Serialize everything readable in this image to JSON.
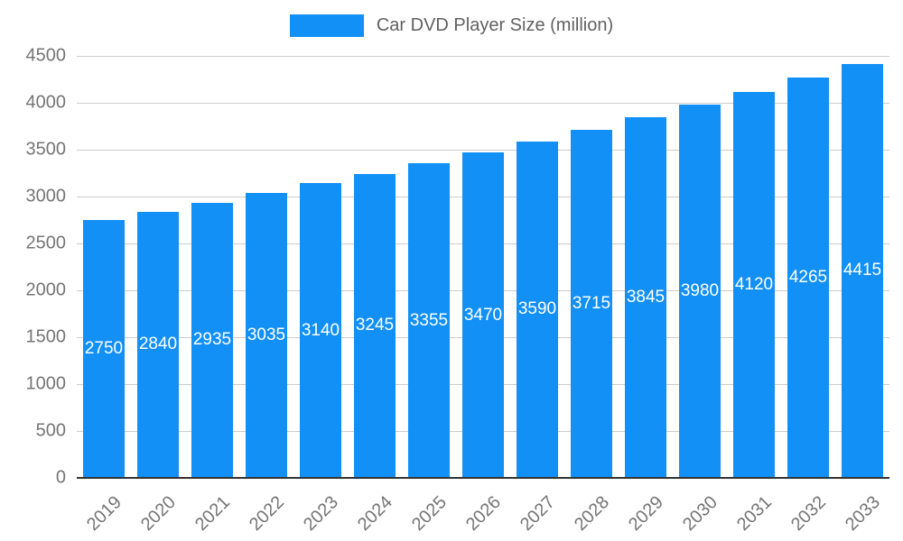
{
  "chart_data": {
    "type": "bar",
    "title": "Car DVD Player Size (million)",
    "categories": [
      "2019",
      "2020",
      "2021",
      "2022",
      "2023",
      "2024",
      "2025",
      "2026",
      "2027",
      "2028",
      "2029",
      "2030",
      "2031",
      "2032",
      "2033"
    ],
    "values": [
      2750,
      2840,
      2935,
      3035,
      3140,
      3245,
      3355,
      3470,
      3590,
      3715,
      3845,
      3980,
      4120,
      4265,
      4415
    ],
    "xlabel": "",
    "ylabel": "",
    "ylim": [
      0,
      4500
    ],
    "ytick_step": 500,
    "grid": true,
    "legend_position": "top",
    "value_label_position": "inside-center"
  },
  "colors": {
    "bar": "#1390f5",
    "grid": "#cccccc",
    "axis_text": "#757575",
    "title_text": "#616161",
    "value_label": "#ffffff",
    "baseline": "#333333",
    "background": "#ffffff"
  }
}
